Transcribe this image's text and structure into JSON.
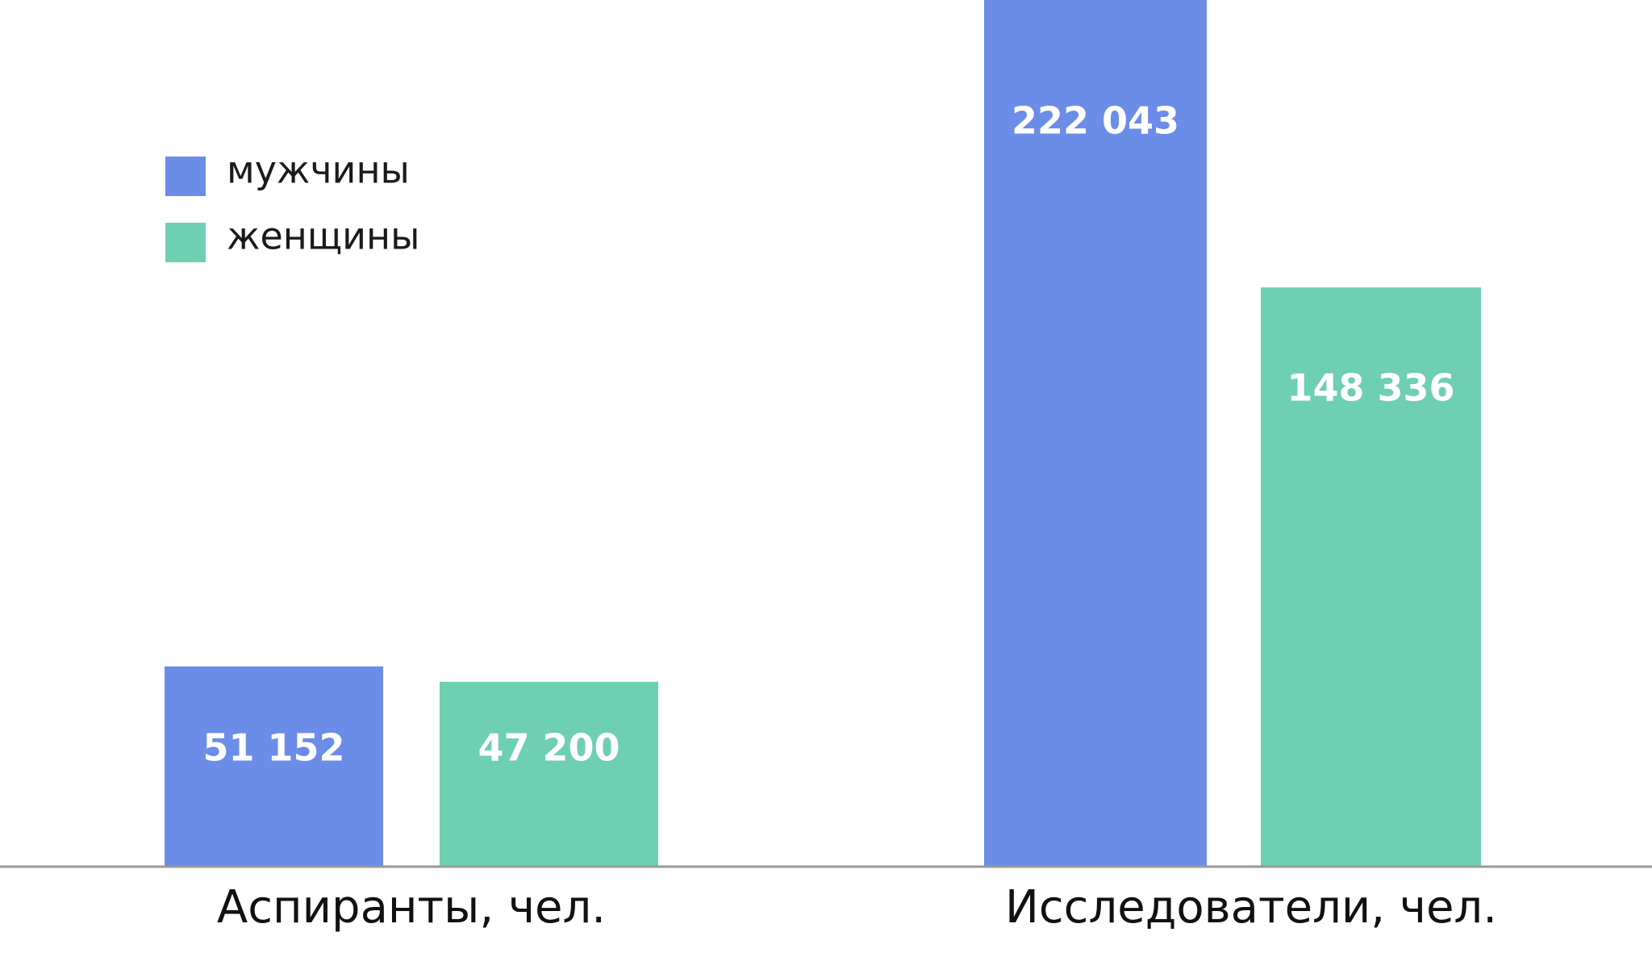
{
  "chart_data": {
    "type": "bar",
    "categories": [
      "Аспиранты, чел.",
      "Исследователи, чел."
    ],
    "series": [
      {
        "name": "мужчины",
        "color": "#6b8de8",
        "values": [
          51152,
          222043
        ],
        "labels": [
          "51 152",
          "222 043"
        ]
      },
      {
        "name": "женщины",
        "color": "#6fcfb2",
        "values": [
          47200,
          148336
        ],
        "labels": [
          "47 200",
          "148 336"
        ]
      }
    ],
    "ylim": [
      0,
      222043
    ],
    "axis_color": "#9a9a9a",
    "grid": false,
    "legend_position": "top-left",
    "title": "",
    "xlabel": "",
    "ylabel": ""
  }
}
